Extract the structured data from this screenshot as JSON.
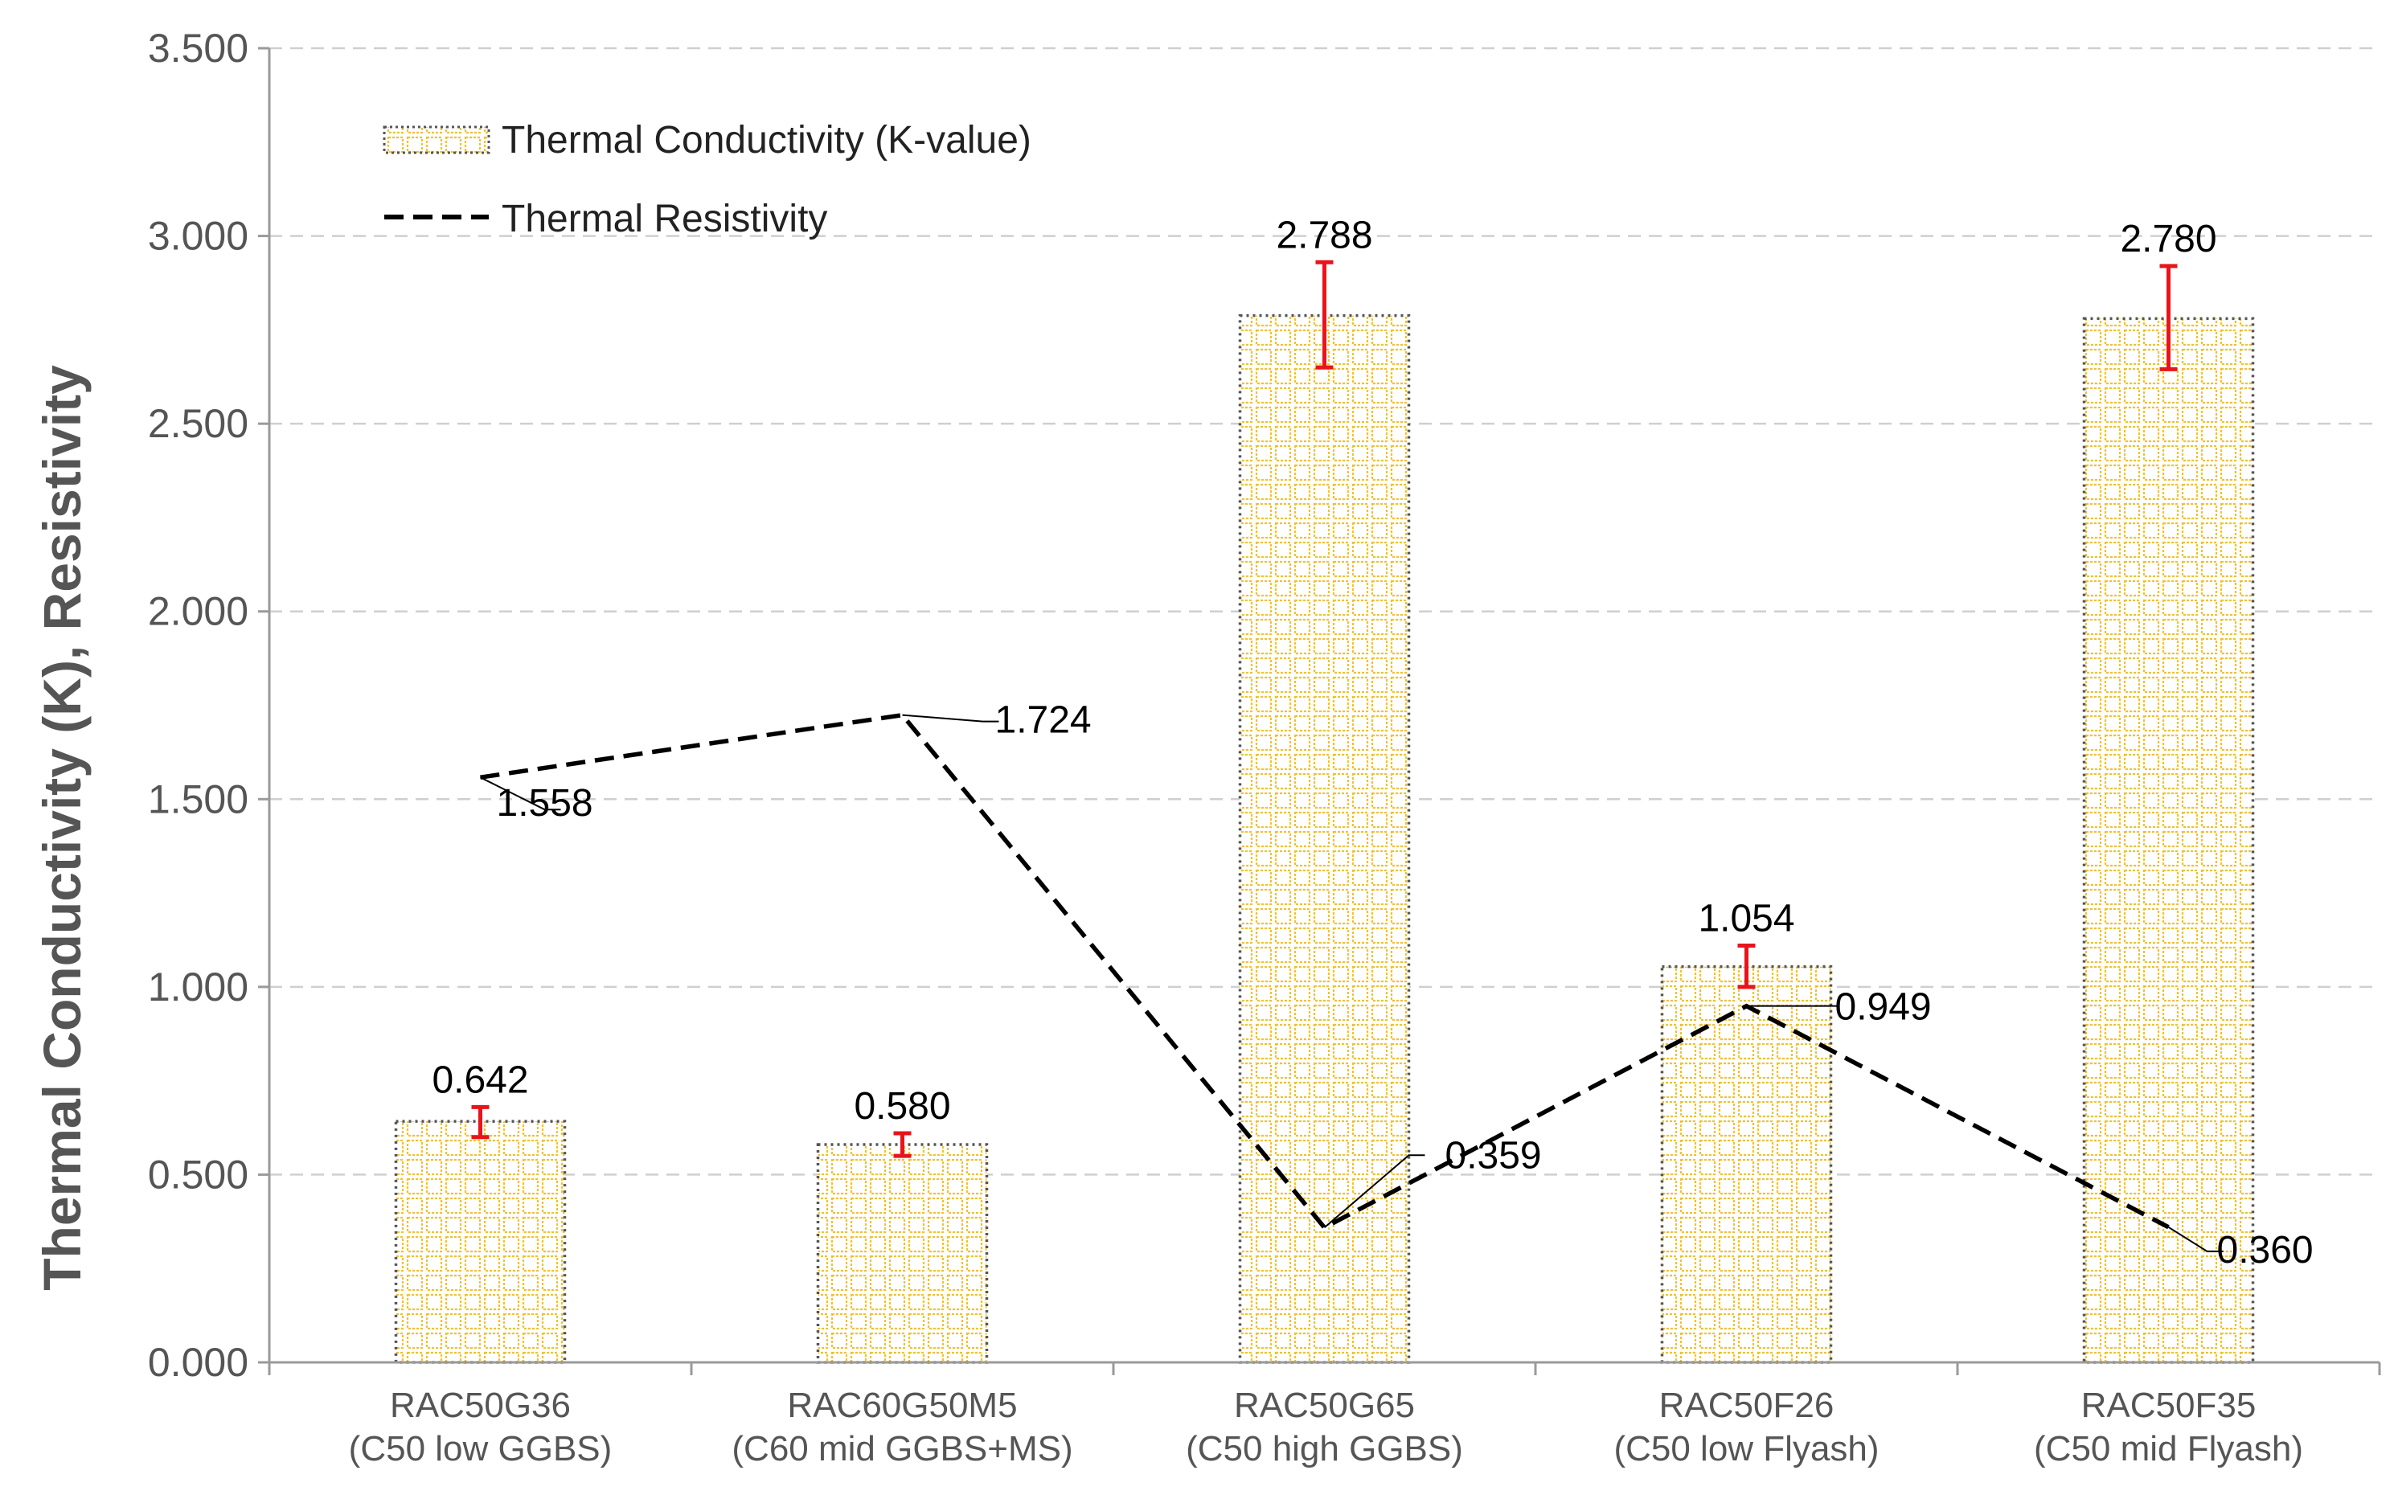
{
  "chart_data": {
    "type": "bar",
    "title": "",
    "xlabel": "",
    "ylabel": "Thermal Conductivity (K), Resistivity",
    "ylim": [
      0,
      3.5
    ],
    "yticks": [
      0,
      0.5,
      1.0,
      1.5,
      2.0,
      2.5,
      3.0,
      3.5
    ],
    "ytick_labels": [
      "0.000",
      "0.500",
      "1.000",
      "1.500",
      "2.000",
      "2.500",
      "3.000",
      "3.500"
    ],
    "grid": "horizontal dashed",
    "legend_position": "top-left",
    "categories": [
      {
        "line1": "RAC50G36",
        "line2": "(C50 low GGBS)"
      },
      {
        "line1": "RAC60G50M5",
        "line2": "(C60 mid GGBS+MS)"
      },
      {
        "line1": "RAC50G65",
        "line2": "(C50 high GGBS)"
      },
      {
        "line1": "RAC50F26",
        "line2": "(C50 low Flyash)"
      },
      {
        "line1": "RAC50F35",
        "line2": "(C50 mid Flyash)"
      }
    ],
    "series": [
      {
        "name": "Thermal Conductivity (K-value)",
        "kind": "bar",
        "color": "#f2c12e",
        "values": [
          0.642,
          0.58,
          2.788,
          1.054,
          2.78
        ],
        "labels": [
          "0.642",
          "0.580",
          "2.788",
          "1.054",
          "2.780"
        ],
        "error_low": [
          0.6,
          0.55,
          2.65,
          1.0,
          2.645
        ],
        "error_high": [
          0.68,
          0.61,
          2.93,
          1.11,
          2.92
        ],
        "error_color": "#e8141b"
      },
      {
        "name": "Thermal Resistivity",
        "kind": "line",
        "style": "dashed",
        "color": "#000000",
        "values": [
          1.558,
          1.724,
          0.359,
          0.949,
          0.36
        ],
        "labels": [
          "1.558",
          "1.724",
          "0.359",
          "0.949",
          "0.360"
        ]
      }
    ]
  }
}
